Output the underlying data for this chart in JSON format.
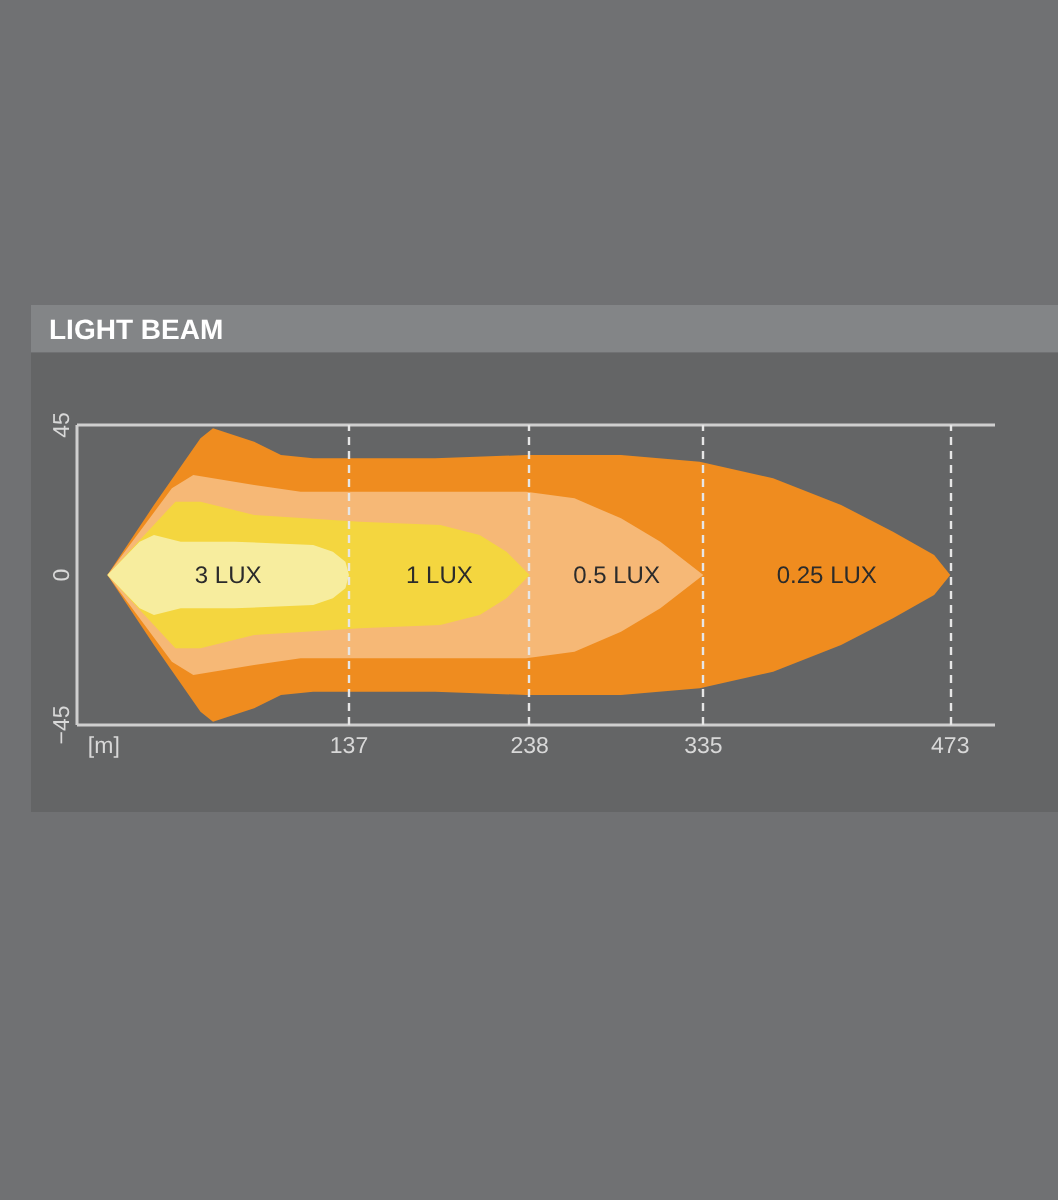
{
  "chart_data": {
    "type": "area",
    "title": "LIGHT BEAM",
    "xlabel": "[m]",
    "xlim": [
      -15,
      498
    ],
    "ylim": [
      -45,
      45
    ],
    "xticks": [
      137,
      238,
      335,
      473
    ],
    "yticks": [
      -45,
      0,
      45
    ],
    "grid": "x",
    "series": [
      {
        "name": "0.25 LUX",
        "color": "#ef8c1f",
        "x": [
          2,
          28,
          54,
          61,
          84,
          99,
          117,
          136,
          185,
          236,
          289,
          333,
          374,
          412,
          441,
          464,
          473
        ],
        "values": [
          0,
          21,
          41,
          44,
          40,
          36,
          35,
          35,
          35,
          36,
          36,
          34,
          29,
          21,
          13,
          6,
          0
        ]
      },
      {
        "color": "#ef8c1f",
        "x": [
          2,
          28,
          54,
          61,
          84,
          99,
          117,
          136,
          185,
          236,
          289,
          333,
          374,
          412,
          441,
          464,
          473
        ],
        "values": [
          0,
          -21,
          -41,
          -44,
          -40,
          -36,
          -35,
          -35,
          -35,
          -36,
          -36,
          -34,
          -29,
          -21,
          -13,
          -6,
          0
        ]
      },
      {
        "name": "0.5 LUX",
        "color": "#f6b876",
        "x": [
          2,
          38,
          50,
          84,
          110,
          143,
          188,
          236,
          263,
          289,
          311,
          335
        ],
        "values": [
          0,
          26,
          30,
          27,
          25,
          25,
          25,
          25,
          23,
          17,
          10,
          0
        ]
      },
      {
        "color": "#f6b876",
        "x": [
          2,
          38,
          50,
          84,
          110,
          143,
          188,
          236,
          263,
          289,
          311,
          335
        ],
        "values": [
          0,
          -26,
          -30,
          -27,
          -25,
          -25,
          -25,
          -25,
          -23,
          -17,
          -10,
          0
        ]
      },
      {
        "name": "1 LUX",
        "color": "#f4d63f",
        "x": [
          2,
          40,
          54,
          84,
          143,
          188,
          210,
          225,
          238
        ],
        "values": [
          0,
          22,
          22,
          18,
          16,
          15,
          12,
          7,
          0
        ]
      },
      {
        "color": "#f4d63f",
        "x": [
          2,
          40,
          54,
          84,
          143,
          188,
          210,
          225,
          238
        ],
        "values": [
          0,
          -22,
          -22,
          -18,
          -16,
          -15,
          -12,
          -7,
          0
        ]
      },
      {
        "name": "3 LUX",
        "color": "#f7ed9e",
        "x": [
          2,
          20,
          28,
          43,
          73,
          117,
          128,
          135,
          137
        ],
        "values": [
          0,
          10,
          12,
          10,
          10,
          9,
          7,
          4,
          0
        ]
      },
      {
        "color": "#f7ed9e",
        "x": [
          2,
          20,
          28,
          43,
          73,
          117,
          128,
          135,
          137
        ],
        "values": [
          0,
          -10,
          -12,
          -10,
          -10,
          -9,
          -7,
          -4,
          0
        ]
      }
    ]
  }
}
